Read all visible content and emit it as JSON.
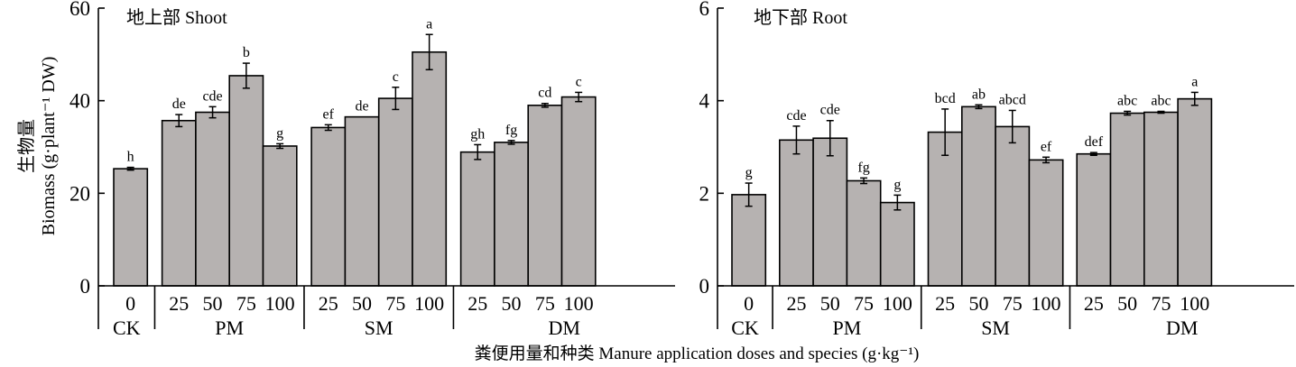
{
  "figure": {
    "y_title_cn": "生物量",
    "y_title_en": "Biomass (g·plant⁻¹ DW)",
    "x_title": "粪便用量和种类 Manure application doses and species (g·kg⁻¹)"
  },
  "colors": {
    "bar_fill": "#b6b2b1",
    "stroke": "#000000"
  },
  "chart_data": [
    {
      "type": "bar",
      "title": "地上部 Shoot",
      "ylabel": "生物量 Biomass (g·plant⁻¹ DW)",
      "xlabel": "粪便用量和种类 Manure application doses and species (g·kg⁻¹)",
      "ylim": [
        0,
        60
      ],
      "yticks": [
        "0",
        "20",
        "40",
        "60"
      ],
      "groups": [
        {
          "name": "CK",
          "doses": [
            "0"
          ]
        },
        {
          "name": "PM",
          "doses": [
            "25",
            "50",
            "75",
            "100"
          ]
        },
        {
          "name": "SM",
          "doses": [
            "25",
            "50",
            "75",
            "100"
          ]
        },
        {
          "name": "DM",
          "doses": [
            "25",
            "50",
            "75",
            "100"
          ]
        }
      ],
      "values": [
        25.3,
        35.7,
        37.5,
        45.4,
        30.2,
        34.2,
        36.5,
        40.5,
        50.5,
        28.9,
        31.0,
        39.0,
        40.8
      ],
      "errors": [
        0.3,
        1.3,
        1.2,
        2.7,
        0.5,
        0.6,
        0,
        2.4,
        3.8,
        1.6,
        0.4,
        0.4,
        1.0
      ],
      "letters": [
        "h",
        "de",
        "cde",
        "b",
        "g",
        "ef",
        "de",
        "c",
        "a",
        "gh",
        "fg",
        "cd",
        "c"
      ]
    },
    {
      "type": "bar",
      "title": "地下部 Root",
      "ylabel": "生物量 Biomass (g·plant⁻¹ DW)",
      "xlabel": "粪便用量和种类 Manure application doses and species (g·kg⁻¹)",
      "ylim": [
        0,
        6
      ],
      "yticks": [
        "0",
        "2",
        "4",
        "6"
      ],
      "groups": [
        {
          "name": "CK",
          "doses": [
            "0"
          ]
        },
        {
          "name": "PM",
          "doses": [
            "25",
            "50",
            "75",
            "100"
          ]
        },
        {
          "name": "SM",
          "doses": [
            "25",
            "50",
            "75",
            "100"
          ]
        },
        {
          "name": "DM",
          "doses": [
            "25",
            "50",
            "75",
            "100"
          ]
        }
      ],
      "values": [
        1.97,
        3.15,
        3.19,
        2.27,
        1.8,
        3.32,
        3.87,
        3.44,
        2.72,
        2.85,
        3.73,
        3.75,
        4.04
      ],
      "errors": [
        0.25,
        0.3,
        0.38,
        0.06,
        0.16,
        0.5,
        0.04,
        0.35,
        0.06,
        0.03,
        0.04,
        0.02,
        0.14
      ],
      "letters": [
        "g",
        "cde",
        "cde",
        "fg",
        "g",
        "bcd",
        "ab",
        "abcd",
        "ef",
        "def",
        "abc",
        "abc",
        "a"
      ]
    }
  ]
}
